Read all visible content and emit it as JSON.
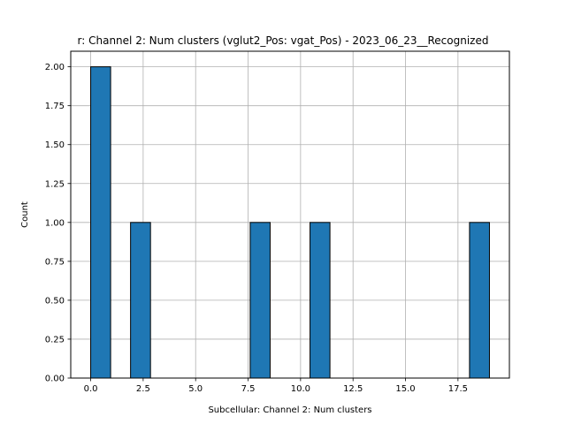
{
  "chart_data": {
    "type": "bar",
    "title": "r: Channel 2: Num clusters (vglut2_Pos: vgat_Pos) - 2023_06_23__Recognized",
    "xlabel": "Subcellular: Channel 2: Num clusters",
    "ylabel": "Count",
    "xlim": [
      -0.95,
      19.95
    ],
    "ylim": [
      0,
      2.1
    ],
    "bin_width": 0.95,
    "bars": [
      {
        "x_start": 0.0,
        "x_end": 0.95,
        "value": 2
      },
      {
        "x_start": 1.9,
        "x_end": 2.85,
        "value": 1
      },
      {
        "x_start": 7.6,
        "x_end": 8.55,
        "value": 1
      },
      {
        "x_start": 10.45,
        "x_end": 11.4,
        "value": 1
      },
      {
        "x_start": 18.05,
        "x_end": 19.0,
        "value": 1
      }
    ],
    "x_ticks": [
      "0.0",
      "2.5",
      "5.0",
      "7.5",
      "10.0",
      "12.5",
      "15.0",
      "17.5"
    ],
    "y_ticks": [
      "0.00",
      "0.25",
      "0.50",
      "0.75",
      "1.00",
      "1.25",
      "1.50",
      "1.75",
      "2.00"
    ],
    "grid": true,
    "colors": {
      "bar_fill": "#1f77b4",
      "bar_edge": "#000000",
      "grid": "#b0b0b0"
    }
  }
}
